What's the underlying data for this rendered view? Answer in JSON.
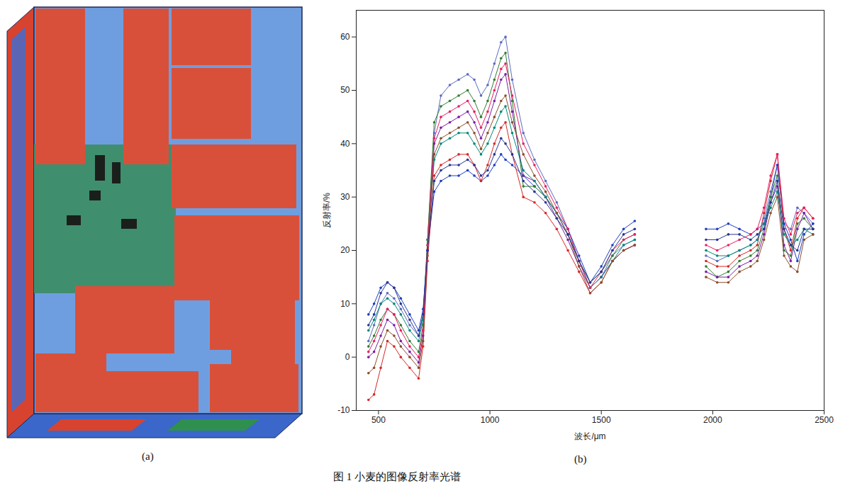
{
  "caption": "图 1 小麦的图像反射率光谱",
  "image_panel": {
    "label": "(a)"
  },
  "chart_data": {
    "type": "line",
    "panel_label": "(b)",
    "x_label": "波长/μm",
    "y_label": "反射率/%",
    "xlim": [
      400,
      2500
    ],
    "xticks": [
      500,
      1000,
      1500,
      2000,
      2500
    ],
    "ylim": [
      -10,
      65
    ],
    "yticks": [
      -10,
      0,
      10,
      20,
      30,
      40,
      50,
      60
    ],
    "grid": false,
    "marker": "circle",
    "x": [
      455,
      480,
      510,
      540,
      570,
      600,
      640,
      680,
      700,
      720,
      750,
      780,
      820,
      860,
      900,
      930,
      960,
      990,
      1020,
      1050,
      1070,
      1100,
      1150,
      1200,
      1250,
      1300,
      1350,
      1400,
      1450,
      1500,
      1550,
      1600,
      1650,
      1800,
      1970,
      2020,
      2070,
      2120,
      2170,
      2200,
      2230,
      2260,
      2290,
      2320,
      2350,
      2380,
      2410,
      2450
    ],
    "series": [
      {
        "color": "#5c6bc0",
        "values": [
          3,
          6,
          10,
          12,
          11,
          9,
          6,
          4,
          8,
          22,
          42,
          49,
          51,
          52,
          53,
          52,
          49,
          51,
          55,
          59,
          60,
          52,
          42,
          37,
          33,
          29,
          24,
          18,
          13,
          15,
          19,
          21,
          22,
          null,
          19,
          18,
          19,
          20,
          21,
          22,
          26,
          31,
          36,
          25,
          24,
          28,
          27,
          25
        ]
      },
      {
        "color": "#1f3fbf",
        "values": [
          8,
          10,
          13,
          14,
          13,
          11,
          8,
          5,
          9,
          20,
          31,
          33,
          34,
          34,
          35,
          34,
          33,
          34,
          36,
          38,
          37,
          36,
          34,
          32,
          30,
          27,
          24,
          19,
          14,
          17,
          21,
          24,
          25.5,
          null,
          24,
          24,
          25,
          24,
          23,
          24,
          25,
          30,
          36,
          25,
          22,
          18,
          23,
          25
        ]
      },
      {
        "color": "#d62728",
        "values": [
          -8,
          -7,
          -2,
          3,
          2,
          0,
          -2,
          -4,
          2,
          18,
          34,
          36,
          37,
          38,
          38,
          36,
          33,
          36,
          40,
          43,
          44,
          38,
          30,
          29,
          27,
          24,
          20,
          16,
          12,
          14,
          18,
          20,
          21,
          null,
          18,
          17,
          17,
          19,
          20,
          21,
          27,
          33,
          38,
          24,
          20,
          26,
          28,
          26
        ]
      },
      {
        "color": "#2e7d32",
        "values": [
          2,
          4,
          7,
          9,
          8,
          6,
          3,
          1,
          6,
          22,
          44,
          47,
          48,
          49,
          50,
          48,
          45,
          48,
          52,
          56,
          57,
          48,
          32,
          32,
          30,
          27,
          23,
          18,
          14,
          16,
          19,
          22,
          23,
          null,
          17,
          15,
          16,
          18,
          19,
          20,
          24,
          30,
          34,
          20,
          19,
          25,
          26,
          24
        ]
      },
      {
        "color": "#7b1fa2",
        "values": [
          0,
          1,
          4,
          7,
          6,
          3,
          1,
          -1,
          4,
          20,
          40,
          43,
          44,
          45,
          46,
          44,
          41,
          44,
          48,
          52,
          53,
          46,
          34,
          33,
          30,
          26,
          22,
          17,
          13,
          15,
          18,
          20,
          21,
          null,
          16,
          15,
          15,
          17,
          18,
          19,
          23,
          29,
          32,
          21,
          18,
          24,
          27,
          24
        ]
      },
      {
        "color": "#00897b",
        "values": [
          5,
          7,
          10,
          11,
          10,
          8,
          5,
          3,
          7,
          21,
          37,
          40,
          41,
          42,
          42,
          40,
          38,
          40,
          43,
          46,
          47,
          42,
          35,
          33,
          30,
          27,
          23,
          18,
          13,
          15,
          18,
          21,
          22,
          null,
          20,
          19,
          19,
          20,
          21,
          22,
          25,
          28,
          31,
          23,
          21,
          22,
          24,
          23
        ]
      },
      {
        "color": "#8d4e2a",
        "values": [
          -3,
          -2,
          2,
          5,
          4,
          2,
          0,
          -2,
          3,
          19,
          38,
          41,
          42,
          43,
          44,
          42,
          39,
          42,
          45,
          48,
          49,
          44,
          38,
          34,
          31,
          27,
          23,
          17,
          12,
          14,
          18,
          20,
          21,
          null,
          15,
          14,
          14,
          16,
          17,
          18,
          22,
          27,
          30,
          19,
          17,
          16,
          22,
          23
        ]
      },
      {
        "color": "#e91e63",
        "values": [
          1,
          3,
          6,
          9,
          8,
          5,
          2,
          0,
          5,
          21,
          41,
          45,
          46,
          47,
          48,
          46,
          43,
          46,
          50,
          54,
          55,
          49,
          40,
          36,
          32,
          28,
          24,
          18,
          13,
          16,
          20,
          22,
          23,
          null,
          21,
          20,
          21,
          22,
          23,
          24,
          28,
          34,
          38,
          26,
          23,
          27,
          28,
          26
        ]
      },
      {
        "color": "#283593",
        "values": [
          6,
          8,
          12,
          14,
          13,
          10,
          7,
          4,
          8,
          20,
          33,
          35,
          36,
          36,
          37,
          36,
          34,
          35,
          38,
          41,
          40,
          38,
          33,
          31,
          29,
          26,
          23,
          18,
          14,
          16,
          20,
          23,
          24,
          null,
          22,
          22,
          23,
          23,
          22,
          23,
          24,
          29,
          33,
          24,
          21,
          20,
          24,
          24
        ]
      }
    ]
  }
}
